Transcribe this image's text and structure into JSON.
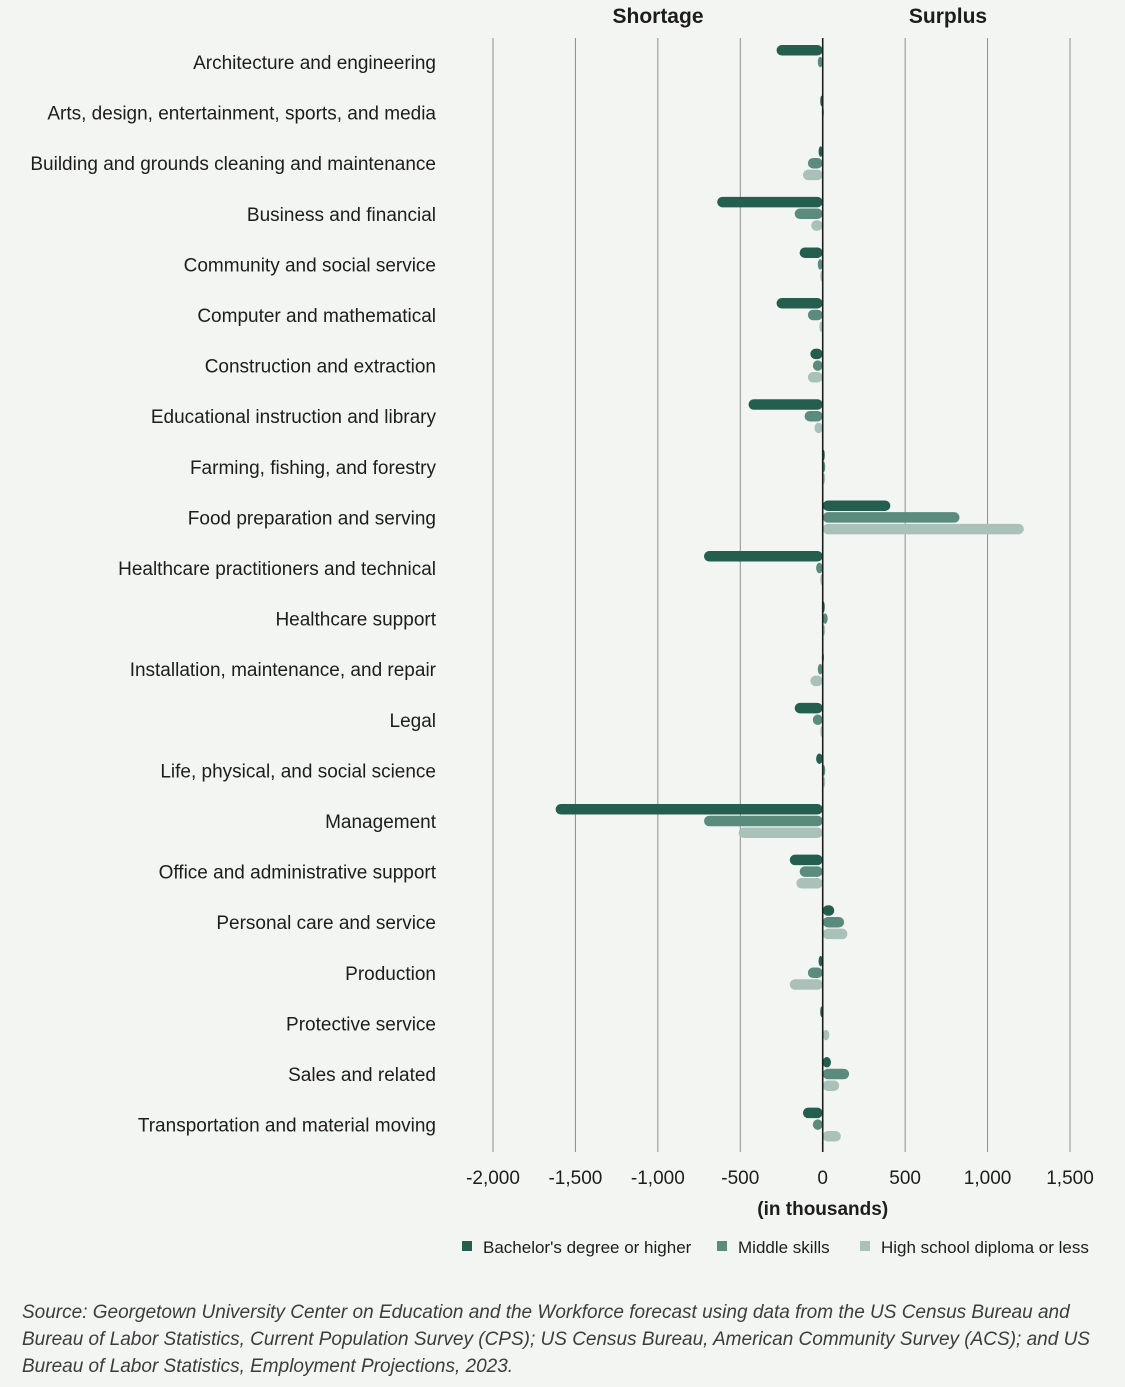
{
  "chart_data": {
    "type": "bar",
    "orientation": "horizontal",
    "side_labels": {
      "left": "Shortage",
      "right": "Surplus"
    },
    "xlabel": "(in thousands)",
    "xlim": [
      -2000,
      1500
    ],
    "xticks": [
      -2000,
      -1500,
      -1000,
      -500,
      0,
      500,
      1000,
      1500
    ],
    "xtick_labels": [
      "-2,000",
      "-1,500",
      "-1,000",
      "-500",
      "0",
      "500",
      "1,000",
      "1,500"
    ],
    "categories": [
      "Architecture and engineering",
      "Arts, design, entertainment, sports, and media",
      "Building and grounds cleaning and maintenance",
      "Business and financial",
      "Community and social service",
      "Computer and mathematical",
      "Construction and extraction",
      "Educational instruction and library",
      "Farming, fishing, and forestry",
      "Food preparation and serving",
      "Healthcare practitioners and technical",
      "Healthcare support",
      "Installation, maintenance, and repair",
      "Legal",
      "Life, physical, and social science",
      "Management",
      "Office and administrative support",
      "Personal care and service",
      "Production",
      "Protective service",
      "Sales and related",
      "Transportation and material moving"
    ],
    "series": [
      {
        "name": "Bachelor's degree or higher",
        "color": "#245e4f",
        "values": [
          -280,
          -15,
          -25,
          -640,
          -140,
          -280,
          -75,
          -450,
          10,
          410,
          -720,
          10,
          -5,
          -170,
          -40,
          -1620,
          -200,
          70,
          -25,
          -15,
          50,
          -120
        ]
      },
      {
        "name": "Middle skills",
        "color": "#5b8b7d",
        "values": [
          -30,
          -5,
          -90,
          -170,
          -30,
          -90,
          -60,
          -110,
          15,
          830,
          -40,
          30,
          -30,
          -60,
          15,
          -720,
          -140,
          130,
          -90,
          0,
          160,
          -60
        ]
      },
      {
        "name": "High school diploma or less",
        "color": "#a9c1b9",
        "values": [
          0,
          0,
          -120,
          -70,
          -15,
          -20,
          -90,
          -50,
          15,
          1220,
          -15,
          15,
          -75,
          -15,
          15,
          -510,
          -160,
          150,
          -200,
          40,
          100,
          110
        ]
      }
    ]
  },
  "source_text": "Source: Georgetown University Center on Education and the Workforce forecast using data from the US Census Bureau and Bureau of Labor Statistics, Current Population Survey (CPS); US Census Bureau, American Community Survey (ACS); and US Bureau of Labor Statistics, Employment Projections, 2023."
}
